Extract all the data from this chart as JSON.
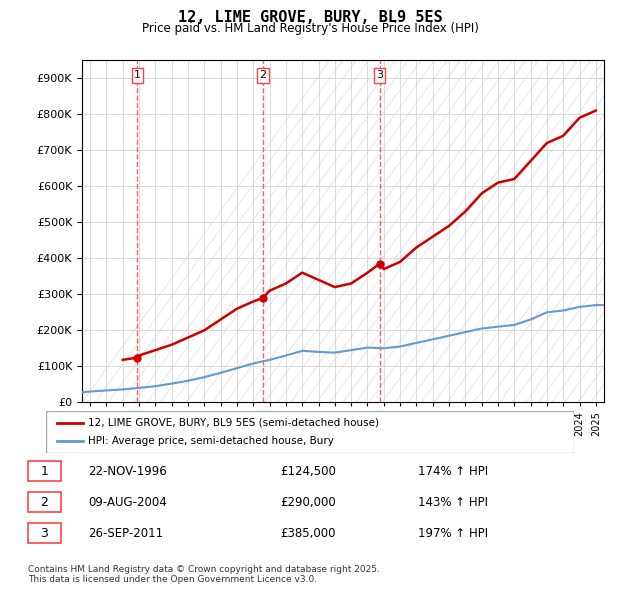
{
  "title": "12, LIME GROVE, BURY, BL9 5ES",
  "subtitle": "Price paid vs. HM Land Registry's House Price Index (HPI)",
  "sale_dates": [
    "22-NOV-1996",
    "09-AUG-2004",
    "26-SEP-2011"
  ],
  "sale_prices": [
    124500,
    290000,
    385000
  ],
  "sale_hpi_pct": [
    "174% ↑ HPI",
    "143% ↑ HPI",
    "197% ↑ HPI"
  ],
  "sale_years": [
    1996.9,
    2004.6,
    2011.75
  ],
  "legend_line1": "12, LIME GROVE, BURY, BL9 5ES (semi-detached house)",
  "legend_line2": "HPI: Average price, semi-detached house, Bury",
  "footnote": "Contains HM Land Registry data © Crown copyright and database right 2025.\nThis data is licensed under the Open Government Licence v3.0.",
  "hpi_color": "#6699cc",
  "price_color": "#cc0000",
  "vline_color": "#ff4444",
  "background_hatch_color": "#e8e8e8",
  "ylim": [
    0,
    950000
  ],
  "xlim_start": 1993.5,
  "xlim_end": 2025.5,
  "hpi_x": [
    1993.5,
    1994,
    1995,
    1996,
    1997,
    1998,
    1999,
    2000,
    2001,
    2002,
    2003,
    2004,
    2005,
    2006,
    2007,
    2008,
    2009,
    2010,
    2011,
    2012,
    2013,
    2014,
    2015,
    2016,
    2017,
    2018,
    2019,
    2020,
    2021,
    2022,
    2023,
    2024,
    2025,
    2025.5
  ],
  "hpi_y": [
    28000,
    30000,
    33000,
    36000,
    40000,
    45000,
    52000,
    60000,
    70000,
    82000,
    95000,
    108000,
    118000,
    130000,
    143000,
    140000,
    138000,
    145000,
    152000,
    150000,
    155000,
    165000,
    175000,
    185000,
    195000,
    205000,
    210000,
    215000,
    230000,
    250000,
    255000,
    265000,
    270000,
    270000
  ],
  "price_x": [
    1996.0,
    1996.9,
    1997,
    1998,
    1999,
    2000,
    2001,
    2002,
    2003,
    2004,
    2004.6,
    2005,
    2006,
    2007,
    2008,
    2009,
    2010,
    2011,
    2011.75,
    2012,
    2013,
    2014,
    2015,
    2016,
    2017,
    2018,
    2019,
    2020,
    2021,
    2022,
    2023,
    2024,
    2025
  ],
  "price_y": [
    118000,
    124500,
    130000,
    145000,
    160000,
    180000,
    200000,
    230000,
    260000,
    280000,
    290000,
    310000,
    330000,
    360000,
    340000,
    320000,
    330000,
    360000,
    385000,
    370000,
    390000,
    430000,
    460000,
    490000,
    530000,
    580000,
    610000,
    620000,
    670000,
    720000,
    740000,
    790000,
    810000
  ]
}
